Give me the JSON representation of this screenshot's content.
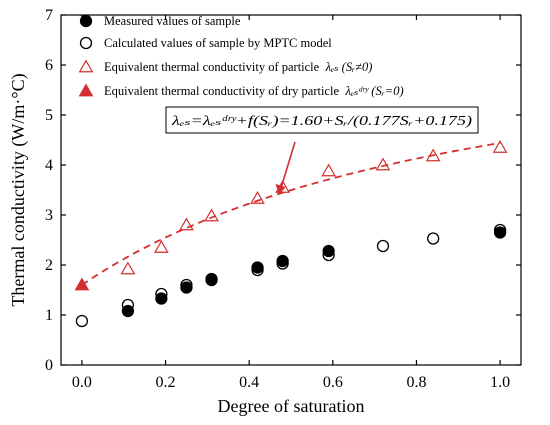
{
  "chart_data": {
    "type": "scatter",
    "xlabel": "Degree of saturation",
    "ylabel": "Thermal conductivity  (W/m·°C)",
    "xlim": [
      -0.05,
      1.05
    ],
    "ylim": [
      0,
      7
    ],
    "xticks": [
      "0.0",
      "0.2",
      "0.4",
      "0.6",
      "0.8",
      "1.0"
    ],
    "yticks": [
      "0",
      "1",
      "2",
      "3",
      "4",
      "5",
      "6",
      "7"
    ],
    "grid": false,
    "legend_position": "top-left",
    "series": [
      {
        "name": "Measured values of sample",
        "marker": "filled-circle",
        "color": "#000000",
        "x": [
          0.11,
          0.19,
          0.25,
          0.31,
          0.42,
          0.48,
          0.59,
          1.0
        ],
        "y": [
          1.08,
          1.33,
          1.55,
          1.72,
          1.95,
          2.08,
          2.28,
          2.65
        ]
      },
      {
        "name": "Calculated values of sample by MPTC model",
        "marker": "open-circle",
        "color": "#000000",
        "x": [
          0.0,
          0.11,
          0.19,
          0.25,
          0.31,
          0.42,
          0.48,
          0.59,
          0.72,
          0.84,
          1.0
        ],
        "y": [
          0.88,
          1.2,
          1.42,
          1.6,
          1.7,
          1.9,
          2.03,
          2.2,
          2.38,
          2.53,
          2.7
        ]
      },
      {
        "name": "Equivalent thermal conductivity of particle",
        "marker": "open-triangle",
        "color": "#d32f2f",
        "x": [
          0.11,
          0.19,
          0.25,
          0.31,
          0.42,
          0.48,
          0.59,
          0.72,
          0.84,
          1.0
        ],
        "y": [
          1.92,
          2.35,
          2.8,
          2.98,
          3.33,
          3.55,
          3.88,
          4.0,
          4.18,
          4.35
        ]
      },
      {
        "name": "Equivalent thermal conductivity of dry particle",
        "marker": "filled-triangle",
        "color": "#d32f2f",
        "x": [
          0.0
        ],
        "y": [
          1.6
        ]
      }
    ],
    "fit_curve": {
      "style": "dashed",
      "color": "#d32f2f",
      "dry_value": 1.6,
      "a": 0.177,
      "b": 0.175
    },
    "legend": [
      {
        "marker": "filled-circle",
        "color": "#000000",
        "text": "Measured values of sample",
        "math": ""
      },
      {
        "marker": "open-circle",
        "color": "#000000",
        "text": "Calculated values of sample by MPTC model",
        "math": ""
      },
      {
        "marker": "open-triangle",
        "color": "#d32f2f",
        "text": "Equivalent thermal conductivity of particle",
        "math": "λₑₛ (Sᵣ≠0)"
      },
      {
        "marker": "filled-triangle",
        "color": "#d32f2f",
        "text": "Equivalent thermal conductivity of dry particle",
        "math": "λₑₛᵈʳʸ (Sᵣ=0)"
      }
    ],
    "annotation": {
      "formula": "λₑₛ=λₑₛᵈʳʸ+f(Sᵣ)=1.60+Sᵣ/(0.177Sᵣ+0.175)",
      "arrow_color": "#d32f2f"
    }
  }
}
